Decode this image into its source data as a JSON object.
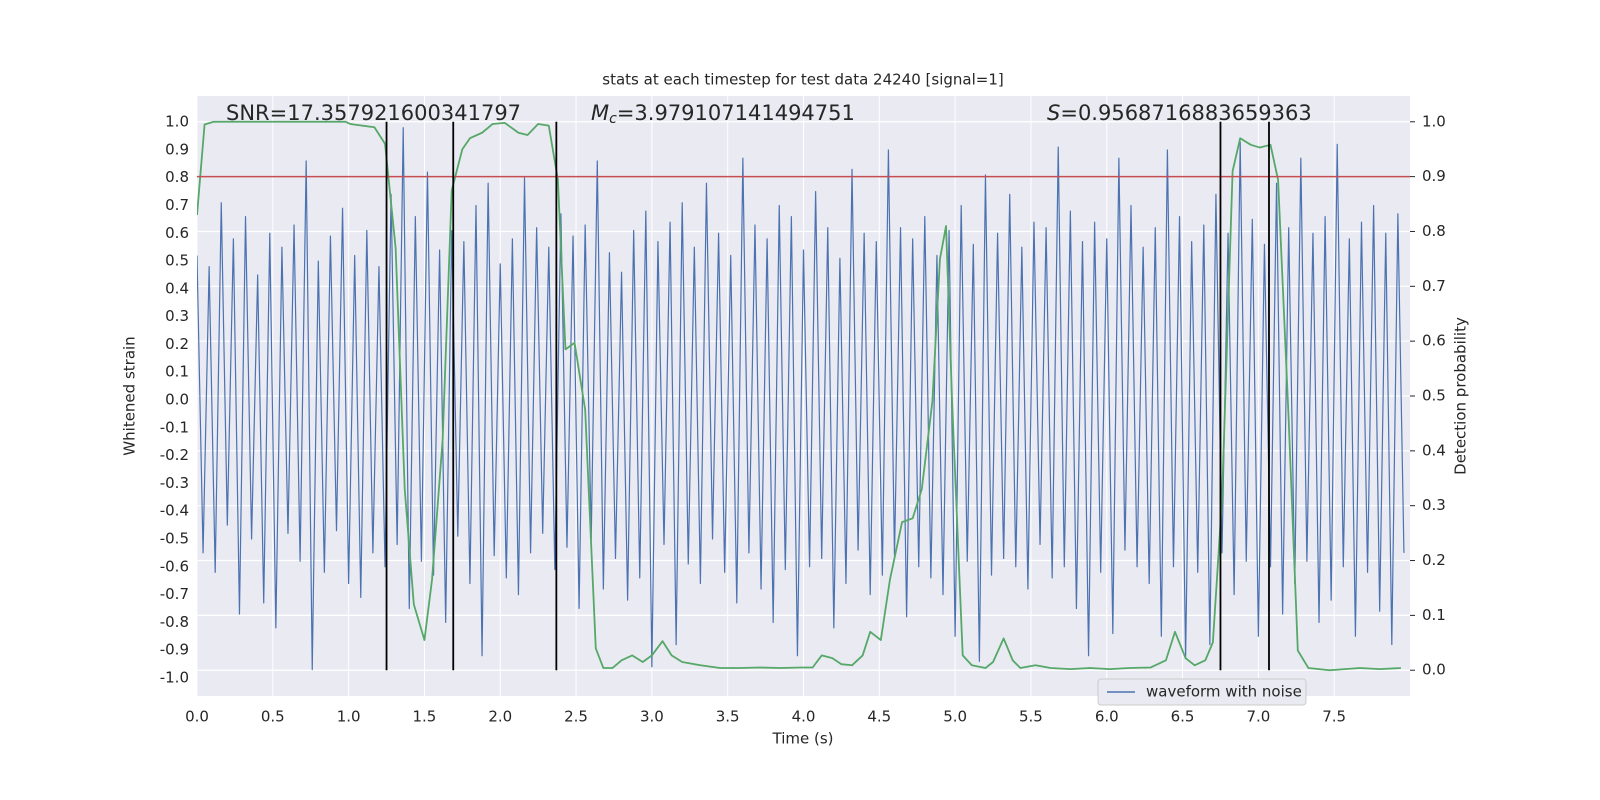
{
  "chart_data": {
    "type": "line",
    "title": "stats at each timestep for test data 24240 [signal=1]",
    "xlabel": "Time (s)",
    "ylabel": "Whitened strain",
    "y2label": "Detection probability",
    "xlim": [
      0,
      8
    ],
    "ylim": [
      -1.065,
      1.094
    ],
    "y2lim": [
      -0.047,
      1.047
    ],
    "xticks": [
      {
        "value": 0,
        "label": "0.0"
      },
      0.5,
      {
        "value": 1,
        "label": "1.0"
      },
      1.5,
      {
        "value": 2,
        "label": "2.0"
      },
      2.5,
      {
        "value": 3,
        "label": "3.0"
      },
      3.5,
      {
        "value": 4,
        "label": "4.0"
      },
      4.5,
      {
        "value": 5,
        "label": "5.0"
      },
      5.5,
      {
        "value": 6,
        "label": "6.0"
      },
      6.5,
      {
        "value": 7,
        "label": "7.0"
      },
      7.5
    ],
    "yticks": [
      {
        "value": -1,
        "label": "-1.0"
      },
      -0.9,
      -0.8,
      -0.7,
      -0.6,
      -0.5,
      -0.4,
      -0.3,
      -0.2,
      -0.1,
      {
        "value": 0,
        "label": "0.0"
      },
      0.1,
      0.2,
      0.3,
      0.4,
      0.5,
      0.6,
      0.7,
      0.8,
      0.9,
      {
        "value": 1,
        "label": "1.0"
      }
    ],
    "y2ticks": [
      {
        "value": 0,
        "label": "0.0"
      },
      0.1,
      0.2,
      0.3,
      0.4,
      0.5,
      0.6,
      0.7,
      0.8,
      0.9,
      {
        "value": 1,
        "label": "1.0"
      }
    ],
    "grid": true,
    "legend": "lower right",
    "series": [
      {
        "name": "waveform with noise",
        "color": "#4c72b0",
        "x": [
          0,
          0.04,
          0.08,
          0.12,
          0.16,
          0.2,
          0.24,
          0.28,
          0.32,
          0.36,
          0.4,
          0.44,
          0.48,
          0.52,
          0.56,
          0.6,
          0.64,
          0.68,
          0.72,
          0.76,
          0.8,
          0.84,
          0.88,
          0.92,
          0.96,
          1,
          1.04,
          1.08,
          1.12,
          1.16,
          1.2,
          1.24,
          1.28,
          1.32,
          1.36,
          1.4,
          1.44,
          1.48,
          1.52,
          1.56,
          1.6,
          1.64,
          1.68,
          1.72,
          1.76,
          1.8,
          1.84,
          1.88,
          1.92,
          1.96,
          2,
          2.04,
          2.08,
          2.12,
          2.16,
          2.2,
          2.24,
          2.28,
          2.32,
          2.36,
          2.4,
          2.44,
          2.48,
          2.52,
          2.56,
          2.6,
          2.64,
          2.68,
          2.72,
          2.76,
          2.8,
          2.84,
          2.88,
          2.92,
          2.96,
          3,
          3.04,
          3.08,
          3.12,
          3.16,
          3.2,
          3.24,
          3.28,
          3.32,
          3.36,
          3.4,
          3.44,
          3.48,
          3.52,
          3.56,
          3.6,
          3.64,
          3.68,
          3.72,
          3.76,
          3.8,
          3.84,
          3.88,
          3.92,
          3.96,
          4,
          4.04,
          4.08,
          4.12,
          4.16,
          4.2,
          4.24,
          4.28,
          4.32,
          4.36,
          4.4,
          4.44,
          4.48,
          4.52,
          4.56,
          4.6,
          4.64,
          4.68,
          4.72,
          4.76,
          4.8,
          4.84,
          4.88,
          4.92,
          4.96,
          5,
          5.04,
          5.08,
          5.12,
          5.16,
          5.2,
          5.24,
          5.28,
          5.32,
          5.36,
          5.4,
          5.44,
          5.48,
          5.52,
          5.56,
          5.6,
          5.64,
          5.68,
          5.72,
          5.76,
          5.8,
          5.84,
          5.88,
          5.92,
          5.96,
          6,
          6.04,
          6.08,
          6.12,
          6.16,
          6.2,
          6.24,
          6.28,
          6.32,
          6.36,
          6.4,
          6.44,
          6.48,
          6.52,
          6.56,
          6.6,
          6.64,
          6.68,
          6.72,
          6.76,
          6.8,
          6.84,
          6.88,
          6.92,
          6.96,
          7,
          7.04,
          7.08,
          7.12,
          7.16,
          7.2,
          7.24,
          7.28,
          7.32,
          7.36,
          7.4,
          7.44,
          7.48,
          7.52,
          7.56,
          7.6,
          7.64,
          7.68,
          7.72,
          7.76,
          7.8,
          7.84,
          7.88,
          7.92,
          7.96
        ],
        "values": [
          0.52,
          -0.55,
          0.48,
          -0.62,
          0.71,
          -0.45,
          0.58,
          -0.77,
          0.66,
          -0.5,
          0.45,
          -0.73,
          0.6,
          -0.82,
          0.55,
          -0.48,
          0.63,
          -0.58,
          0.86,
          -0.97,
          0.5,
          -0.62,
          0.59,
          -0.47,
          0.69,
          -0.66,
          0.52,
          -0.71,
          0.61,
          -0.55,
          0.48,
          -0.6,
          0.74,
          -0.52,
          0.98,
          -0.75,
          0.66,
          -0.58,
          0.82,
          -0.63,
          0.54,
          -0.8,
          0.61,
          -0.49,
          0.57,
          -0.66,
          0.7,
          -0.92,
          0.78,
          -0.56,
          0.49,
          -0.64,
          0.58,
          -0.7,
          0.8,
          -0.55,
          0.62,
          -0.48,
          0.55,
          -0.61,
          0.67,
          -0.53,
          0.59,
          -0.75,
          0.63,
          -0.5,
          0.86,
          -0.68,
          0.53,
          -0.57,
          0.46,
          -0.72,
          0.61,
          -0.64,
          0.68,
          -0.96,
          0.57,
          -0.52,
          0.64,
          -0.88,
          0.71,
          -0.59,
          0.55,
          -0.66,
          0.78,
          -0.5,
          0.6,
          -0.62,
          0.52,
          -0.73,
          0.87,
          -0.55,
          0.63,
          -0.68,
          0.58,
          -0.8,
          0.7,
          -0.61,
          0.66,
          -0.92,
          0.54,
          -0.6,
          0.75,
          -0.57,
          0.62,
          -0.82,
          0.51,
          -0.66,
          0.83,
          -0.54,
          0.6,
          -0.7,
          0.57,
          -0.63,
          0.9,
          -0.56,
          0.62,
          -0.78,
          0.58,
          -0.6,
          0.66,
          -0.64,
          0.52,
          -0.7,
          0.61,
          -0.85,
          0.7,
          -0.58,
          0.56,
          -0.94,
          0.81,
          -0.63,
          0.6,
          -0.57,
          0.74,
          -0.6,
          0.55,
          -0.68,
          0.64,
          -0.52,
          0.62,
          -0.64,
          0.91,
          -0.6,
          0.68,
          -0.75,
          0.57,
          -0.92,
          0.64,
          -0.62,
          0.58,
          -0.84,
          0.87,
          -0.54,
          0.7,
          -0.6,
          0.55,
          -0.66,
          0.62,
          -0.85,
          0.9,
          -0.6,
          0.66,
          -0.93,
          0.57,
          -0.62,
          0.63,
          -0.88,
          0.74,
          -0.55,
          0.6,
          -0.7,
          0.93,
          -0.58,
          0.65,
          -0.85,
          0.56,
          -0.6,
          0.78,
          -0.77,
          0.62,
          -0.66,
          0.87,
          -0.58,
          0.6,
          -0.8,
          0.66,
          -0.72,
          0.92,
          -0.6,
          0.58,
          -0.85,
          0.64,
          -0.62,
          0.7,
          -0.76,
          0.6,
          -0.88,
          0.67,
          -0.55
        ]
      },
      {
        "color": "#55a868",
        "axis": "y2",
        "x": [
          0,
          0.05,
          0.11,
          0.98,
          1.01,
          1.17,
          1.24,
          1.31,
          1.37,
          1.43,
          1.5,
          1.55,
          1.62,
          1.68,
          1.75,
          1.8,
          1.88,
          1.95,
          2.03,
          2.12,
          2.18,
          2.25,
          2.32,
          2.38,
          2.43,
          2.49,
          2.56,
          2.63,
          2.68,
          2.74,
          2.8,
          2.87,
          2.94,
          3,
          3.07,
          3.13,
          3.2,
          3.32,
          3.45,
          3.58,
          3.71,
          3.85,
          3.98,
          4.06,
          4.12,
          4.19,
          4.25,
          4.32,
          4.39,
          4.44,
          4.51,
          4.57,
          4.65,
          4.72,
          4.78,
          4.85,
          4.9,
          4.94,
          4.98,
          5.05,
          5.11,
          5.2,
          5.25,
          5.32,
          5.38,
          5.43,
          5.53,
          5.63,
          5.76,
          5.89,
          6.02,
          6.15,
          6.29,
          6.39,
          6.45,
          6.52,
          6.58,
          6.65,
          6.7,
          6.76,
          6.83,
          6.88,
          6.95,
          7.01,
          7.08,
          7.13,
          7.2,
          7.26,
          7.33,
          7.47,
          7.67,
          7.8,
          7.94
        ],
        "values": [
          0.83,
          0.995,
          1,
          1,
          0.996,
          0.99,
          0.96,
          0.77,
          0.33,
          0.12,
          0.055,
          0.165,
          0.42,
          0.875,
          0.95,
          0.97,
          0.98,
          0.996,
          0.998,
          0.98,
          0.976,
          0.996,
          0.993,
          0.895,
          0.585,
          0.597,
          0.475,
          0.04,
          0.004,
          0.004,
          0.018,
          0.027,
          0.015,
          0.027,
          0.053,
          0.027,
          0.015,
          0.009,
          0.004,
          0.004,
          0.005,
          0.004,
          0.005,
          0.005,
          0.027,
          0.022,
          0.011,
          0.009,
          0.027,
          0.07,
          0.055,
          0.165,
          0.27,
          0.277,
          0.33,
          0.49,
          0.75,
          0.81,
          0.49,
          0.027,
          0.009,
          0.004,
          0.015,
          0.058,
          0.018,
          0.004,
          0.009,
          0.004,
          0.002,
          0.004,
          0.002,
          0.004,
          0.005,
          0.018,
          0.07,
          0.022,
          0.009,
          0.018,
          0.051,
          0.31,
          0.91,
          0.97,
          0.958,
          0.953,
          0.958,
          0.894,
          0.456,
          0.036,
          0.004,
          0,
          0.004,
          0.002,
          0.004
        ]
      }
    ],
    "threshold": {
      "value": 0.9,
      "color": "#c44e52",
      "axis": "y2"
    },
    "vlines": [
      1.25,
      1.69,
      2.37,
      6.75,
      7.07
    ],
    "vline_range": [
      0,
      1
    ],
    "vline_color": "#000000",
    "annotations": [
      {
        "text": "SNR=17.357921600341797"
      },
      {
        "symbol": "M",
        "subscript": "c",
        "text": "=3.979107141494751"
      },
      {
        "symbol": "S",
        "text": "=0.9568716883659363"
      }
    ]
  }
}
